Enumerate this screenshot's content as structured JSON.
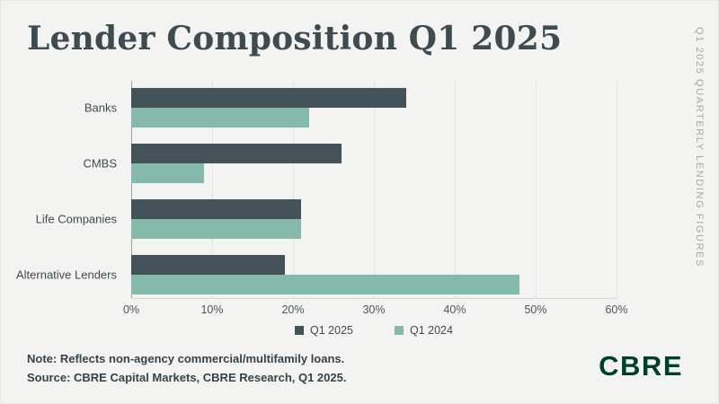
{
  "title": "Lender Composition Q1 2025",
  "sidebar_label": "Q1 2025 QUARTERLY LENDING FIGURES",
  "note": {
    "line1": "Note: Reflects non-agency commercial/multifamily loans.",
    "line2": "Source: CBRE Capital Markets, CBRE Research, Q1 2025."
  },
  "logo_text": "CBRE",
  "colors": {
    "background": "#f3f4f1",
    "title_text": "#3e4c52",
    "sidebar_text": "#9faaa3",
    "series_q1_2025": "#44535a",
    "series_q1_2024": "#85b9ab",
    "gridline": "#e1e3de",
    "zero_axis_line": "#9aa3a1",
    "tick_label": "#4c565a",
    "note_text": "#36424a",
    "logo_green": "#003f2d"
  },
  "chart_data": {
    "type": "bar",
    "orientation": "horizontal",
    "title": "Lender Composition Q1 2025",
    "categories": [
      "Banks",
      "CMBS",
      "Life Companies",
      "Alternative Lenders"
    ],
    "series": [
      {
        "name": "Q1 2025",
        "color": "#44535a",
        "values": [
          34,
          26,
          21,
          19
        ]
      },
      {
        "name": "Q1 2024",
        "color": "#85b9ab",
        "values": [
          22,
          9,
          21,
          48
        ]
      }
    ],
    "value_unit": "%",
    "xlim": [
      0,
      60
    ],
    "x_ticks": [
      "0%",
      "10%",
      "20%",
      "30%",
      "40%",
      "50%",
      "60%"
    ],
    "x_tick_values": [
      0,
      10,
      20,
      30,
      40,
      50,
      60
    ],
    "grid": true,
    "legend_position": "bottom"
  }
}
